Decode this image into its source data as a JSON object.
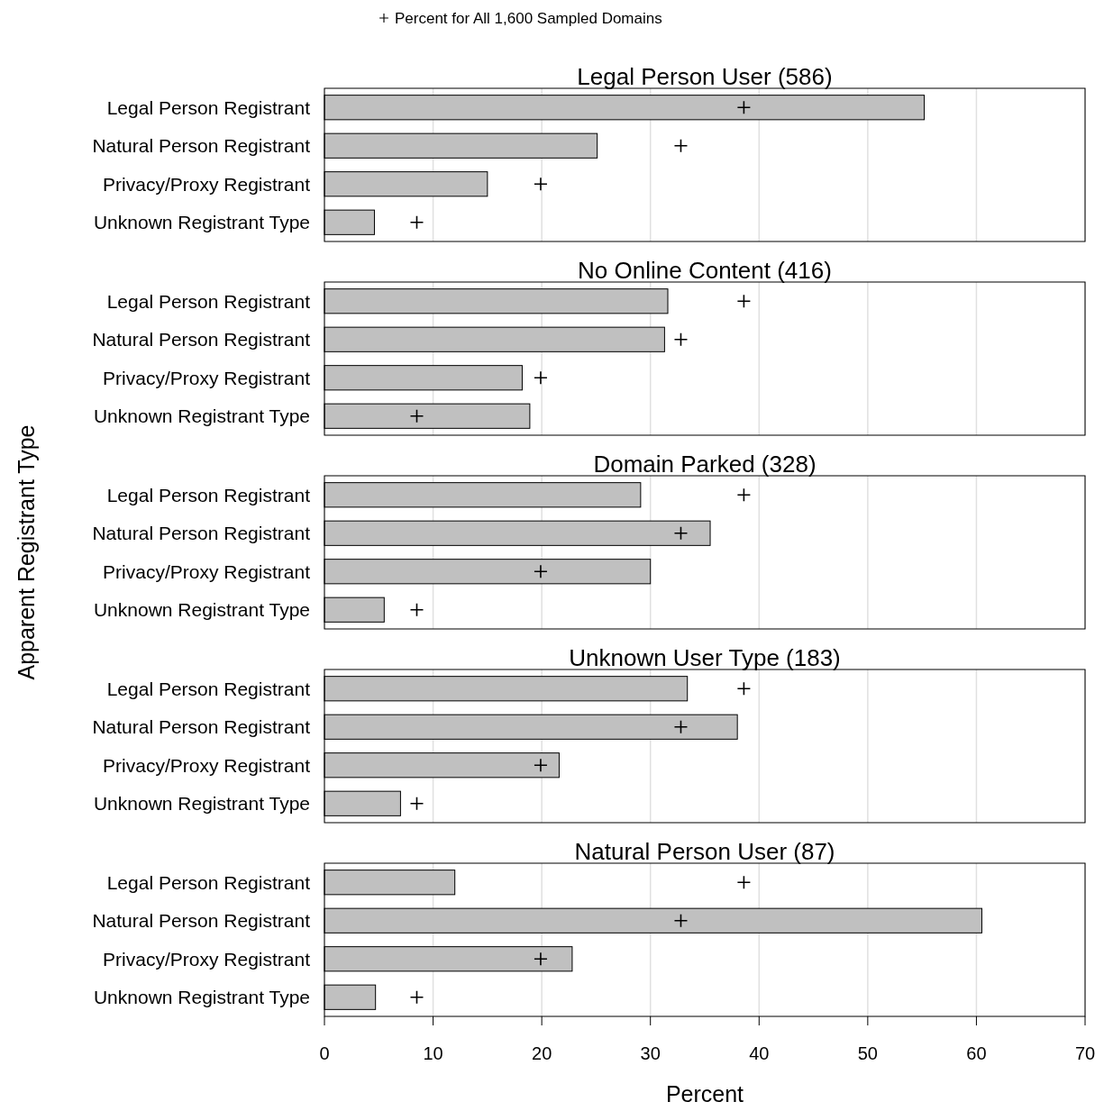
{
  "chart_data": [
    {
      "type": "bar",
      "orientation": "horizontal",
      "title": "Legal Person User (586)",
      "categories": [
        "Legal Person Registrant",
        "Natural Person Registrant",
        "Privacy/Proxy Registrant",
        "Unknown Registrant Type"
      ],
      "series": [
        {
          "color": "#c0c0c0",
          "values": [
            55.2,
            25.1,
            15.0,
            4.6
          ]
        },
        {
          "type": "scatter",
          "name": "Percent for All 1,600 Sampled Domains",
          "color": "#000000",
          "marker": "cross",
          "x": [
            "Legal Person Registrant",
            "Natural Person Registrant",
            "Privacy/Proxy Registrant",
            "Unknown Registrant Type"
          ],
          "values": [
            38.6,
            32.8,
            19.9,
            8.5
          ]
        }
      ],
      "xlim": [
        0,
        70
      ],
      "xticks": [
        0,
        10,
        20,
        30,
        40,
        50,
        60,
        70
      ],
      "grid": "x",
      "tick_labels": "y",
      "legend": "top"
    },
    {
      "type": "bar",
      "orientation": "horizontal",
      "title": "No Online Content (416)",
      "categories": [
        "Legal Person Registrant",
        "Natural Person Registrant",
        "Privacy/Proxy Registrant",
        "Unknown Registrant Type"
      ],
      "series": [
        {
          "color": "#c0c0c0",
          "values": [
            31.6,
            31.3,
            18.2,
            18.9
          ]
        },
        {
          "type": "scatter",
          "color": "#000000",
          "marker": "cross",
          "x": [
            "Legal Person Registrant",
            "Natural Person Registrant",
            "Privacy/Proxy Registrant",
            "Unknown Registrant Type"
          ],
          "values": [
            38.6,
            32.8,
            19.9,
            8.5
          ]
        }
      ],
      "xlim": [
        0,
        70
      ],
      "xticks": [
        0,
        10,
        20,
        30,
        40,
        50,
        60,
        70
      ],
      "grid": "x",
      "tick_labels": "y"
    },
    {
      "type": "bar",
      "orientation": "horizontal",
      "title": "Domain Parked (328)",
      "ylabel": "Apparent Registrant Type",
      "categories": [
        "Legal Person Registrant",
        "Natural Person Registrant",
        "Privacy/Proxy Registrant",
        "Unknown Registrant Type"
      ],
      "series": [
        {
          "color": "#c0c0c0",
          "values": [
            29.1,
            35.5,
            30.0,
            5.5
          ]
        },
        {
          "type": "scatter",
          "color": "#000000",
          "marker": "cross",
          "x": [
            "Legal Person Registrant",
            "Natural Person Registrant",
            "Privacy/Proxy Registrant",
            "Unknown Registrant Type"
          ],
          "values": [
            38.6,
            32.8,
            19.9,
            8.5
          ]
        }
      ],
      "xlim": [
        0,
        70
      ],
      "xticks": [
        0,
        10,
        20,
        30,
        40,
        50,
        60,
        70
      ],
      "grid": "x",
      "tick_labels": "y"
    },
    {
      "type": "bar",
      "orientation": "horizontal",
      "title": "Unknown User Type (183)",
      "categories": [
        "Legal Person Registrant",
        "Natural Person Registrant",
        "Privacy/Proxy Registrant",
        "Unknown Registrant Type"
      ],
      "series": [
        {
          "color": "#c0c0c0",
          "values": [
            33.4,
            38.0,
            21.6,
            7.0
          ]
        },
        {
          "type": "scatter",
          "color": "#000000",
          "marker": "cross",
          "x": [
            "Legal Person Registrant",
            "Natural Person Registrant",
            "Privacy/Proxy Registrant",
            "Unknown Registrant Type"
          ],
          "values": [
            38.6,
            32.8,
            19.9,
            8.5
          ]
        }
      ],
      "xlim": [
        0,
        70
      ],
      "xticks": [
        0,
        10,
        20,
        30,
        40,
        50,
        60,
        70
      ],
      "grid": "x",
      "tick_labels": "y"
    },
    {
      "type": "bar",
      "orientation": "horizontal",
      "title": "Natural Person User (87)",
      "xlabel": "Percent",
      "categories": [
        "Legal Person Registrant",
        "Natural Person Registrant",
        "Privacy/Proxy Registrant",
        "Unknown Registrant Type"
      ],
      "series": [
        {
          "color": "#c0c0c0",
          "values": [
            12.0,
            60.5,
            22.8,
            4.7
          ]
        },
        {
          "type": "scatter",
          "color": "#000000",
          "marker": "cross",
          "x": [
            "Legal Person Registrant",
            "Natural Person Registrant",
            "Privacy/Proxy Registrant",
            "Unknown Registrant Type"
          ],
          "values": [
            38.6,
            32.8,
            19.9,
            8.5
          ]
        }
      ],
      "xlim": [
        0,
        70
      ],
      "xticks": [
        0,
        10,
        20,
        30,
        40,
        50,
        60,
        70
      ],
      "grid": "x"
    }
  ]
}
